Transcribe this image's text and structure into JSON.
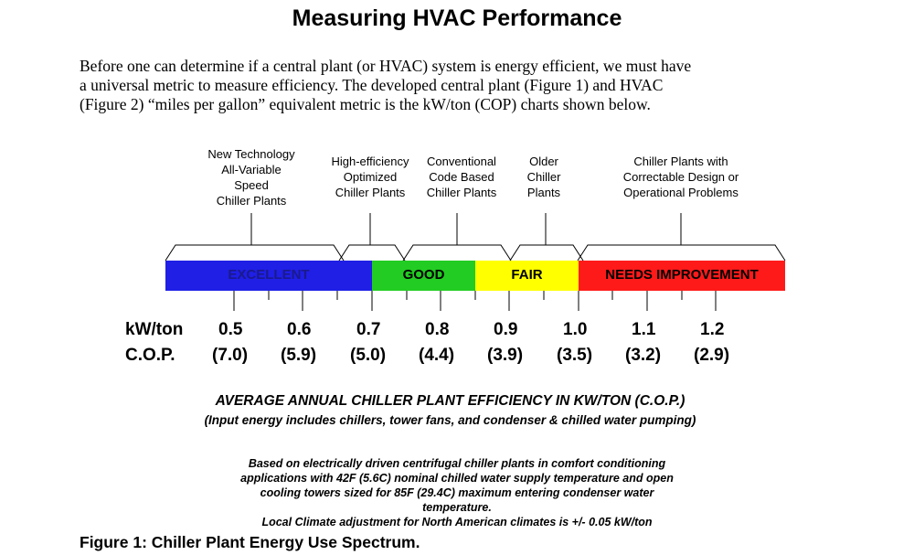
{
  "title": "Measuring HVAC Performance",
  "intro": {
    "line1": "Before one can determine if a central plant (or HVAC) system is energy efficient, we must have",
    "line2": "a universal metric to measure efficiency.  The developed central plant (Figure 1) and HVAC",
    "line3": "(Figure 2) “miles per gallon” equivalent metric is the kW/ton (COP) charts shown below."
  },
  "categories": [
    {
      "lines": [
        "New Technology",
        "All-Variable",
        "Speed",
        "Chiller Plants"
      ]
    },
    {
      "lines": [
        "High-efficiency",
        "Optimized",
        "Chiller Plants"
      ]
    },
    {
      "lines": [
        "Conventional",
        "Code Based",
        "Chiller Plants"
      ]
    },
    {
      "lines": [
        "Older",
        "Chiller",
        "Plants"
      ]
    },
    {
      "lines": [
        "Chiller Plants with",
        "Correctable Design or",
        "Operational Problems"
      ]
    }
  ],
  "bands": {
    "excellent": {
      "label": "EXCELLENT",
      "color": "#1f1fe6",
      "text_color": "#1a1a8c"
    },
    "good": {
      "label": "GOOD",
      "color": "#22cc22",
      "text_color": "#000000"
    },
    "fair": {
      "label": "FAIR",
      "color": "#ffff00",
      "text_color": "#000000"
    },
    "needs_improvement": {
      "label": "NEEDS IMPROVEMENT",
      "color": "#ff1a1a",
      "text_color": "#000000"
    }
  },
  "axis": {
    "kw_label": "kW/ton",
    "cop_label": "C.O.P.",
    "kw_values": [
      "0.5",
      "0.6",
      "0.7",
      "0.8",
      "0.9",
      "1.0",
      "1.1",
      "1.2"
    ],
    "cop_values": [
      "(7.0)",
      "(5.9)",
      "(5.0)",
      "(4.4)",
      "(3.9)",
      "(3.5)",
      "(3.2)",
      "(2.9)"
    ]
  },
  "average_title": "AVERAGE ANNUAL CHILLER PLANT EFFICIENCY IN KW/TON (C.O.P.)",
  "average_subtitle": "(Input energy includes chillers, tower fans, and condenser & chilled water pumping)",
  "note": {
    "line1": "Based on electrically driven centrifugal chiller plants in comfort conditioning",
    "line2": "applications with 42F (5.6C) nominal chilled water supply temperature and open",
    "line3": "cooling towers sized for 85F (29.4C) maximum entering condenser water",
    "line4": "temperature.",
    "line5": "Local Climate adjustment for North American climates is +/- 0.05 kW/ton"
  },
  "caption": "Figure 1: Chiller Plant Energy Use Spectrum."
}
